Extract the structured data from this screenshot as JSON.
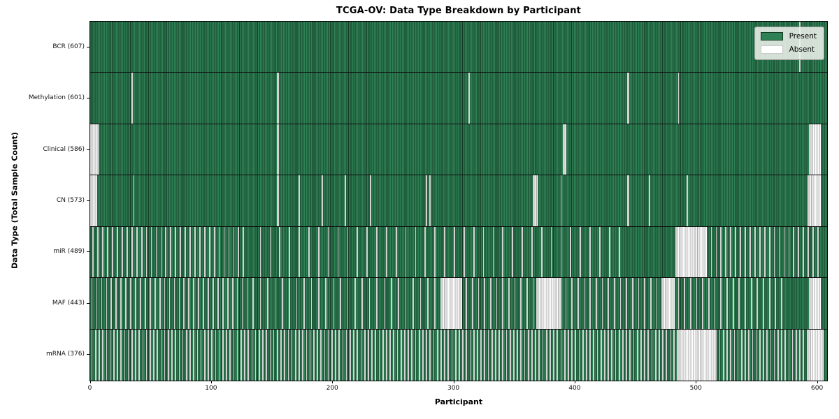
{
  "colors": {
    "present": "#2e8155",
    "present_edge": "#143b25",
    "absent": "#ffffff",
    "absent_edge": "#a6a6a6",
    "row_divider": "#0d0d0d",
    "spine": "#000000",
    "legend_bg": "#f2f5f0"
  },
  "chart_data": {
    "type": "heatmap",
    "title": "TCGA-OV: Data Type Breakdown by Participant",
    "xlabel": "Participant",
    "ylabel": "Data Type (Total Sample Count)",
    "x_ticks": [
      0,
      100,
      200,
      300,
      400,
      500,
      600
    ],
    "x_range": [
      0,
      608
    ],
    "n_participants": 608,
    "legend_entries": [
      "Present",
      "Absent"
    ],
    "legend_position": "upper right",
    "grid": false,
    "rows": [
      {
        "label": "BCR (607)",
        "data_type": "BCR",
        "present_count": 607,
        "absent_count": 1,
        "absent_ranges": [
          [
            585,
            585
          ]
        ],
        "absent_steps": []
      },
      {
        "label": "Methylation (601)",
        "data_type": "Methylation",
        "present_count": 601,
        "absent_count": 7,
        "absent_ranges": [
          [
            34,
            34
          ],
          [
            154,
            155
          ],
          [
            312,
            312
          ],
          [
            443,
            444
          ],
          [
            485,
            485
          ]
        ],
        "absent_steps": []
      },
      {
        "label": "Clinical (586)",
        "data_type": "Clinical",
        "present_count": 586,
        "absent_count": 22,
        "absent_ranges": [
          [
            0,
            6
          ],
          [
            154,
            155
          ],
          [
            390,
            392
          ],
          [
            593,
            602
          ]
        ],
        "absent_steps": []
      },
      {
        "label": "CN (573)",
        "data_type": "CN",
        "present_count": 573,
        "absent_count": 35,
        "absent_ranges": [
          [
            0,
            5
          ],
          [
            35,
            35
          ],
          [
            154,
            155
          ],
          [
            172,
            172
          ],
          [
            191,
            191
          ],
          [
            210,
            210
          ],
          [
            231,
            231
          ],
          [
            277,
            277
          ],
          [
            280,
            280
          ],
          [
            365,
            368
          ],
          [
            388,
            388
          ],
          [
            443,
            444
          ],
          [
            461,
            461
          ],
          [
            492,
            492
          ],
          [
            592,
            602
          ]
        ],
        "absent_steps": []
      },
      {
        "label": "miR (489)",
        "data_type": "miR",
        "present_count": 489,
        "absent_count": 119,
        "absent_ranges": [
          [
            483,
            508
          ]
        ],
        "absent_steps": [
          {
            "start": 2,
            "end": 126,
            "step": 4
          },
          {
            "start": 140,
            "end": 436,
            "step": 8
          },
          {
            "start": 512,
            "end": 600,
            "step": 4
          }
        ]
      },
      {
        "label": "MAF (443)",
        "data_type": "MAF",
        "present_count": 443,
        "absent_count": 165,
        "absent_ranges": [
          [
            289,
            306
          ],
          [
            368,
            388
          ],
          [
            471,
            481
          ],
          [
            593,
            602
          ]
        ],
        "absent_steps": [
          {
            "start": 1,
            "end": 129,
            "step": 4
          },
          {
            "start": 134,
            "end": 284,
            "step": 6
          },
          {
            "start": 310,
            "end": 365,
            "step": 5
          },
          {
            "start": 392,
            "end": 467,
            "step": 5
          },
          {
            "start": 485,
            "end": 570,
            "step": 5
          }
        ]
      },
      {
        "label": "mRNA (376)",
        "data_type": "mRNA",
        "present_count": 376,
        "absent_count": 232,
        "absent_ranges": [
          [
            485,
            515
          ],
          [
            591,
            604
          ]
        ],
        "absent_steps": [
          {
            "start": 1,
            "end": 484,
            "step": 3
          },
          {
            "start": 516,
            "end": 588,
            "step": 3
          }
        ]
      }
    ]
  }
}
